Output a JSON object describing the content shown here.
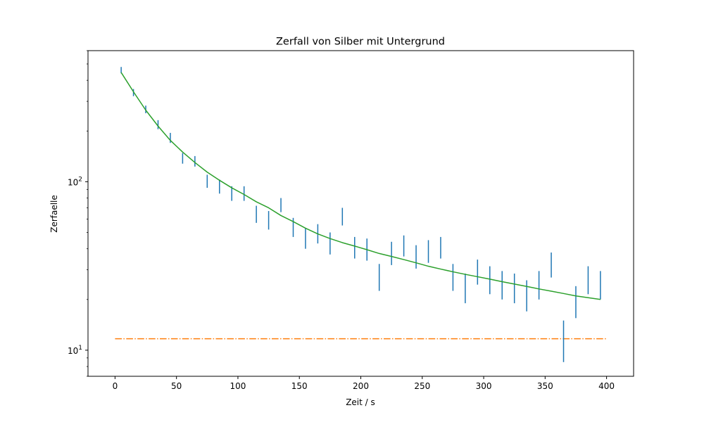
{
  "chart_data": {
    "type": "scatter",
    "title": "Zerfall von Silber mit Untergrund",
    "xlabel": "Zeit / s",
    "ylabel": "Zerfaelle",
    "xlim": [
      -22,
      422
    ],
    "ylim": [
      7,
      600
    ],
    "yscale": "log",
    "grid": false,
    "legend": "none",
    "x_ticks": [
      0,
      50,
      100,
      150,
      200,
      250,
      300,
      350,
      400
    ],
    "y_ticks": [
      {
        "value": 10,
        "base": "10",
        "exp": "1"
      },
      {
        "value": 100,
        "base": "10",
        "exp": "2"
      }
    ],
    "colors": {
      "measurements": "#1f77b4",
      "background": "#ff7f0e",
      "fit": "#2ca02c"
    },
    "measurements": [
      {
        "x": 5,
        "low": 440,
        "high": 480
      },
      {
        "x": 15,
        "low": 322,
        "high": 355
      },
      {
        "x": 25,
        "low": 255,
        "high": 283
      },
      {
        "x": 35,
        "low": 205,
        "high": 232
      },
      {
        "x": 45,
        "low": 170,
        "high": 195
      },
      {
        "x": 55,
        "low": 128,
        "high": 148
      },
      {
        "x": 65,
        "low": 123,
        "high": 142
      },
      {
        "x": 75,
        "low": 92,
        "high": 110
      },
      {
        "x": 85,
        "low": 85,
        "high": 103
      },
      {
        "x": 95,
        "low": 77,
        "high": 94
      },
      {
        "x": 105,
        "low": 77,
        "high": 94
      },
      {
        "x": 115,
        "low": 57,
        "high": 72
      },
      {
        "x": 125,
        "low": 52,
        "high": 67
      },
      {
        "x": 135,
        "low": 66,
        "high": 80
      },
      {
        "x": 145,
        "low": 47,
        "high": 61
      },
      {
        "x": 155,
        "low": 40,
        "high": 53
      },
      {
        "x": 165,
        "low": 43,
        "high": 56
      },
      {
        "x": 175,
        "low": 37,
        "high": 50
      },
      {
        "x": 185,
        "low": 55,
        "high": 70
      },
      {
        "x": 195,
        "low": 35,
        "high": 47
      },
      {
        "x": 205,
        "low": 34,
        "high": 46
      },
      {
        "x": 215,
        "low": 22.5,
        "high": 32.5
      },
      {
        "x": 225,
        "low": 32,
        "high": 44
      },
      {
        "x": 235,
        "low": 36,
        "high": 48
      },
      {
        "x": 245,
        "low": 30.5,
        "high": 42
      },
      {
        "x": 255,
        "low": 33,
        "high": 45
      },
      {
        "x": 265,
        "low": 35,
        "high": 47
      },
      {
        "x": 275,
        "low": 22.5,
        "high": 32.5
      },
      {
        "x": 285,
        "low": 19,
        "high": 28.5
      },
      {
        "x": 295,
        "low": 24.5,
        "high": 34.5
      },
      {
        "x": 305,
        "low": 21.5,
        "high": 31.5
      },
      {
        "x": 315,
        "low": 20,
        "high": 29.5
      },
      {
        "x": 325,
        "low": 19,
        "high": 28.5
      },
      {
        "x": 335,
        "low": 17,
        "high": 26
      },
      {
        "x": 345,
        "low": 20,
        "high": 29.5
      },
      {
        "x": 355,
        "low": 27,
        "high": 38
      },
      {
        "x": 365,
        "low": 8.5,
        "high": 15
      },
      {
        "x": 375,
        "low": 15.5,
        "high": 24
      },
      {
        "x": 385,
        "low": 21.5,
        "high": 31.5
      },
      {
        "x": 395,
        "low": 20,
        "high": 29.5
      }
    ],
    "background_level": {
      "x": [
        0,
        400
      ],
      "y": 11.7
    },
    "fit_curve": {
      "x": [
        5,
        15,
        25,
        35,
        45,
        55,
        65,
        75,
        85,
        95,
        105,
        115,
        125,
        135,
        145,
        155,
        165,
        175,
        185,
        195,
        205,
        215,
        225,
        235,
        245,
        255,
        265,
        275,
        285,
        295,
        305,
        315,
        325,
        335,
        345,
        355,
        365,
        375,
        385,
        395
      ],
      "y": [
        445,
        342,
        266,
        214,
        176,
        150,
        130,
        114,
        102,
        92,
        84,
        76,
        70,
        63,
        58,
        53,
        49,
        46,
        43.5,
        41.5,
        39.5,
        37.5,
        36,
        34.5,
        33,
        31.5,
        30.3,
        29.2,
        28.2,
        27.3,
        26.4,
        25.5,
        24.7,
        23.9,
        23.1,
        22.4,
        21.7,
        21,
        20.5,
        20
      ]
    }
  }
}
